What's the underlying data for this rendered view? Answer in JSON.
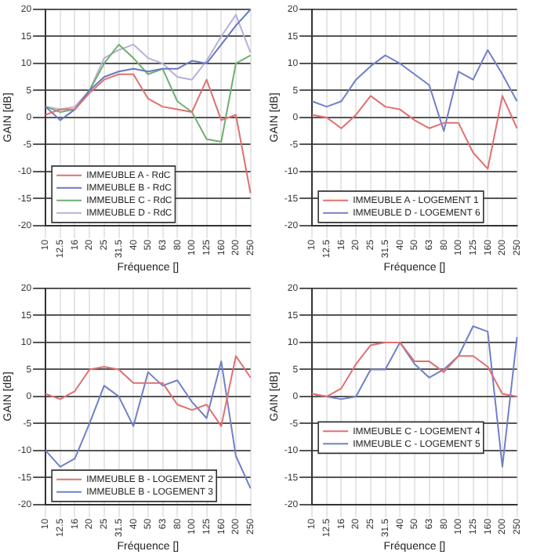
{
  "chart_data": [
    {
      "type": "line",
      "xlabel": "Fréquence []",
      "ylabel": "GAIN [dB]",
      "categories": [
        "10",
        "12.5",
        "16",
        "20",
        "25",
        "31.5",
        "40",
        "50",
        "63",
        "80",
        "100",
        "125",
        "160",
        "200",
        "250"
      ],
      "ylim": [
        -20,
        20
      ],
      "yticks": [
        -20,
        -15,
        -10,
        -5,
        0,
        5,
        10,
        15,
        20
      ],
      "grid": true,
      "legend": "bottom left",
      "marker": "none",
      "series": [
        {
          "name": "IMMEUBLE A - RdC",
          "color": "#e07070",
          "values": [
            0.5,
            1.5,
            1.5,
            4.5,
            7,
            8,
            8,
            3.5,
            2,
            1.5,
            1,
            7,
            -0.5,
            0.5,
            -14
          ]
        },
        {
          "name": "IMMEUBLE B - RdC",
          "color": "#6878c0",
          "values": [
            2,
            -0.5,
            1.5,
            5,
            7.5,
            8.5,
            9,
            8.5,
            9,
            9,
            10.5,
            10,
            13.5,
            17,
            20
          ]
        },
        {
          "name": "IMMEUBLE C - RdC",
          "color": "#70b070",
          "values": [
            2,
            1,
            1.5,
            5,
            10,
            13.5,
            11,
            8,
            9,
            3,
            1,
            -4,
            -4.5,
            10,
            11.5
          ]
        },
        {
          "name": "IMMEUBLE D - RdC",
          "color": "#b8b0d8",
          "values": [
            2,
            1.5,
            2,
            5,
            11,
            12.5,
            13.5,
            11,
            10,
            7.5,
            7,
            10.5,
            15,
            19,
            12
          ]
        }
      ]
    },
    {
      "type": "line",
      "xlabel": "Fréquence []",
      "ylabel": "GAIN [dB]",
      "categories": [
        "10",
        "12.5",
        "16",
        "20",
        "25",
        "31.5",
        "40",
        "50",
        "63",
        "80",
        "100",
        "125",
        "160",
        "200",
        "250"
      ],
      "ylim": [
        -20,
        20
      ],
      "yticks": [
        -20,
        -15,
        -10,
        -5,
        0,
        5,
        10,
        15,
        20
      ],
      "grid": true,
      "legend": "bottom left",
      "marker": "none",
      "series": [
        {
          "name": "IMMEUBLE A - LOGEMENT 1",
          "color": "#e07070",
          "values": [
            0.5,
            0,
            -2,
            0.5,
            4,
            2,
            1.5,
            -0.5,
            -2,
            -1,
            -1,
            -6.5,
            -9.5,
            4,
            -2
          ]
        },
        {
          "name": "IMMEUBLE D - LOGEMENT 6",
          "color": "#7080c8",
          "values": [
            3,
            2,
            3,
            7,
            9.5,
            11.5,
            10,
            8,
            6,
            -2.5,
            8.5,
            7,
            12.5,
            8,
            3
          ]
        }
      ]
    },
    {
      "type": "line",
      "xlabel": "Fréquence []",
      "ylabel": "GAIN [dB]",
      "categories": [
        "10",
        "12.5",
        "16",
        "20",
        "25",
        "31.5",
        "40",
        "50",
        "63",
        "80",
        "100",
        "125",
        "160",
        "200",
        "250"
      ],
      "ylim": [
        -20,
        20
      ],
      "yticks": [
        -20,
        -15,
        -10,
        -5,
        0,
        5,
        10,
        15,
        20
      ],
      "grid": true,
      "legend": "bottom left",
      "marker": "none",
      "series": [
        {
          "name": "IMMEUBLE B - LOGEMENT 2",
          "color": "#e07070",
          "values": [
            0.5,
            -0.5,
            1,
            5,
            5.5,
            5,
            2.5,
            2.5,
            2.5,
            -1.5,
            -2.5,
            -1.5,
            -5.5,
            7.5,
            3.5
          ]
        },
        {
          "name": "IMMEUBLE B - LOGEMENT 3",
          "color": "#7080c8",
          "values": [
            -10,
            -13,
            -11.5,
            -5,
            2,
            0,
            -5.5,
            4.5,
            2,
            3,
            -1,
            -4,
            6.5,
            -11,
            -17
          ]
        }
      ]
    },
    {
      "type": "line",
      "xlabel": "Fréquence []",
      "ylabel": "GAIN [dB]",
      "categories": [
        "10",
        "12.5",
        "16",
        "20",
        "25",
        "31.5",
        "40",
        "50",
        "63",
        "80",
        "100",
        "125",
        "160",
        "200",
        "250"
      ],
      "ylim": [
        -20,
        20
      ],
      "yticks": [
        -20,
        -15,
        -10,
        -5,
        0,
        5,
        10,
        15,
        20
      ],
      "grid": true,
      "legend": "left",
      "marker": "none",
      "series": [
        {
          "name": "IMMEUBLE C - LOGEMENT 4",
          "color": "#e07070",
          "values": [
            0.5,
            0,
            1.5,
            6,
            9.5,
            10,
            10,
            6.5,
            6.5,
            4.5,
            7.5,
            7.5,
            5.5,
            0.5,
            0
          ]
        },
        {
          "name": "IMMEUBLE C - LOGEMENT 5",
          "color": "#7080c8",
          "values": [
            0.5,
            0,
            -0.5,
            0,
            5,
            5,
            10,
            6,
            3.5,
            5,
            7.5,
            13,
            12,
            -13,
            11
          ]
        }
      ]
    }
  ]
}
